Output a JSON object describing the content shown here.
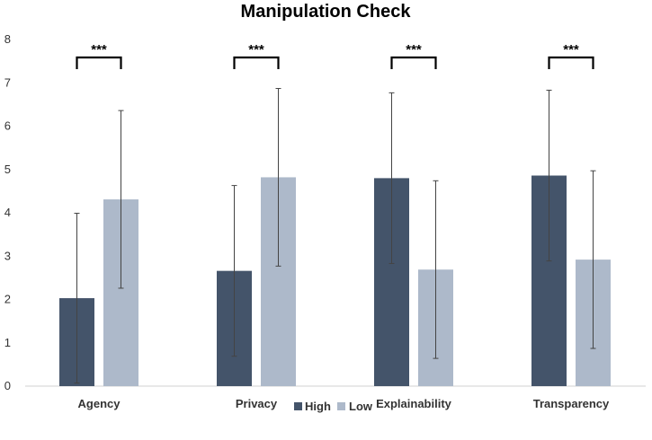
{
  "chart_data": {
    "type": "bar",
    "title": "Manipulation Check",
    "categories": [
      "Agency",
      "Privacy",
      "Explainability",
      "Transparency"
    ],
    "series": [
      {
        "name": "High",
        "color": "#44546a",
        "values": [
          2.03,
          2.66,
          4.8,
          4.86
        ],
        "error": [
          1.96,
          1.97,
          1.97,
          1.97
        ]
      },
      {
        "name": "Low",
        "color": "#adb9ca",
        "values": [
          4.31,
          4.82,
          2.69,
          2.92
        ],
        "error": [
          2.05,
          2.05,
          2.05,
          2.05
        ]
      }
    ],
    "significance": [
      "***",
      "***",
      "***",
      "***"
    ],
    "ylim": [
      0,
      8
    ],
    "yticks": [
      "0",
      "1",
      "2",
      "3",
      "4",
      "5",
      "6",
      "7",
      "8"
    ],
    "xlabel": "",
    "ylabel": "",
    "legend_position": "bottom",
    "grid": false
  }
}
